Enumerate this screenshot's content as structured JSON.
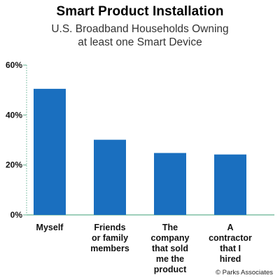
{
  "chart_data": {
    "type": "bar",
    "title": "Smart Product Installation",
    "subtitle": [
      "U.S. Broadband Households Owning",
      "at least one Smart Device"
    ],
    "categories": [
      [
        "Myself"
      ],
      [
        "Friends",
        "or family",
        "members"
      ],
      [
        "The",
        "company",
        "that sold",
        "me the",
        "product"
      ],
      [
        "A",
        "contractor",
        "that I",
        "hired"
      ]
    ],
    "values": [
      50.5,
      30.1,
      24.8,
      24.2
    ],
    "y_ticks": [
      0,
      20,
      40,
      60
    ],
    "y_tick_labels": [
      "0%",
      "20%",
      "40%",
      "60%"
    ],
    "ylim": [
      0,
      60
    ],
    "xlabel": "",
    "ylabel": "",
    "grid": false,
    "bar_color": "#1a6fbf",
    "axis_color": "#7fbfa4"
  },
  "footer": {
    "copyright": "© Parks Associates"
  }
}
